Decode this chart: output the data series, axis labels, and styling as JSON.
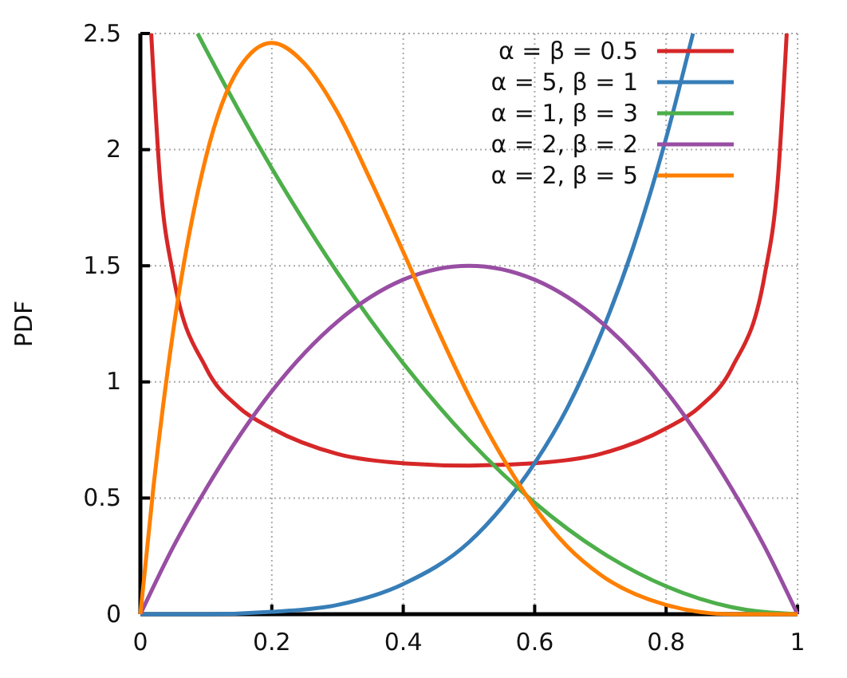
{
  "chart_data": {
    "type": "line",
    "ylabel": "PDF",
    "xlim": [
      0,
      1
    ],
    "ylim": [
      0,
      2.5
    ],
    "xticks": [
      0,
      0.2,
      0.4,
      0.6,
      0.8,
      1
    ],
    "yticks": [
      0,
      0.5,
      1,
      1.5,
      2,
      2.5
    ],
    "grid": true,
    "legend": "top right",
    "line_style": "solid",
    "marker": "none",
    "series": [
      {
        "name": "α = β = 0.5",
        "color": "#d62728",
        "x": [
          0.0165,
          0.03,
          0.05,
          0.1,
          0.15,
          0.2,
          0.3,
          0.4,
          0.5,
          0.6,
          0.7,
          0.8,
          0.85,
          0.9,
          0.95,
          0.97,
          0.9835
        ],
        "values": [
          2.5,
          1.87,
          1.46,
          1.06,
          0.89,
          0.8,
          0.69,
          0.65,
          0.64,
          0.65,
          0.69,
          0.8,
          0.89,
          1.06,
          1.46,
          1.87,
          2.5
        ]
      },
      {
        "name": "α = 5, β = 1",
        "color": "#377eb8",
        "x": [
          0,
          0.1,
          0.2,
          0.3,
          0.4,
          0.5,
          0.55,
          0.6,
          0.65,
          0.7,
          0.75,
          0.8,
          0.8409
        ],
        "values": [
          0,
          0,
          0.01,
          0.04,
          0.13,
          0.31,
          0.46,
          0.65,
          0.89,
          1.2,
          1.58,
          2.05,
          2.5
        ]
      },
      {
        "name": "α = 1, β = 3",
        "color": "#4daf4a",
        "x": [
          0.0871,
          0.1,
          0.2,
          0.3,
          0.4,
          0.5,
          0.6,
          0.7,
          0.8,
          0.9,
          1
        ],
        "values": [
          2.5,
          2.43,
          1.92,
          1.47,
          1.08,
          0.75,
          0.48,
          0.27,
          0.12,
          0.03,
          0
        ]
      },
      {
        "name": "α = 2, β = 2",
        "color": "#984ea3",
        "x": [
          0,
          0.05,
          0.1,
          0.2,
          0.3,
          0.4,
          0.5,
          0.6,
          0.7,
          0.8,
          0.9,
          0.95,
          1
        ],
        "values": [
          0,
          0.29,
          0.54,
          0.96,
          1.26,
          1.44,
          1.5,
          1.44,
          1.26,
          0.96,
          0.54,
          0.29,
          0
        ]
      },
      {
        "name": "α = 2, β = 5",
        "color": "#ff7f00",
        "x": [
          0,
          0.02,
          0.05,
          0.1,
          0.15,
          0.2,
          0.25,
          0.3,
          0.35,
          0.4,
          0.45,
          0.5,
          0.55,
          0.6,
          0.65,
          0.7,
          0.8,
          0.9,
          1
        ],
        "values": [
          0,
          0.55,
          1.22,
          1.97,
          2.35,
          2.46,
          2.37,
          2.16,
          1.87,
          1.56,
          1.24,
          0.94,
          0.68,
          0.46,
          0.29,
          0.17,
          0.04,
          0,
          0
        ]
      }
    ]
  }
}
